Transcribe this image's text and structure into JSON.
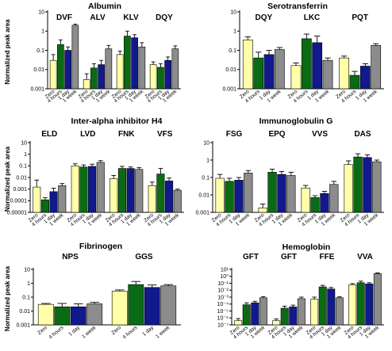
{
  "legend_colors": {
    "Zero": "#ffffa8",
    "4 hours": "#0b6b14",
    "1 day": "#101a8c",
    "1 week": "#8c8c8c"
  },
  "chart_data": [
    {
      "type": "bar",
      "scale": "log",
      "title": "Albumin",
      "ylabel": "Normalized peak area",
      "ylim": [
        0.001,
        10
      ],
      "yticks": [
        0.001,
        0.01,
        0.1,
        1,
        10
      ],
      "ytick_labels": [
        "0.001",
        "0.01",
        "0.1",
        "1",
        "10"
      ],
      "categories": [
        "Zero",
        "4 hours",
        "1 day",
        "1 week"
      ],
      "groups": [
        {
          "label": "DVF",
          "values": [
            0.03,
            0.2,
            0.1,
            2.0
          ],
          "errors": [
            0.06,
            0.35,
            0.15,
            2.3
          ]
        },
        {
          "label": "ALV",
          "values": [
            0.003,
            0.012,
            0.018,
            0.12
          ],
          "errors": [
            0.006,
            0.02,
            0.03,
            0.18
          ]
        },
        {
          "label": "KLV",
          "values": [
            0.06,
            0.55,
            0.45,
            0.15
          ],
          "errors": [
            0.09,
            1.0,
            0.65,
            0.25
          ]
        },
        {
          "label": "DQY",
          "values": [
            0.018,
            0.013,
            0.03,
            0.12
          ],
          "errors": [
            0.025,
            0.02,
            0.045,
            0.17
          ]
        }
      ]
    },
    {
      "type": "bar",
      "scale": "log",
      "title": "Serotransferrin",
      "ylabel": "",
      "ylim": [
        0.001,
        10
      ],
      "yticks": [
        0.001,
        0.01,
        0.1,
        1,
        10
      ],
      "ytick_labels": [
        "0.001",
        "0.01",
        "0.1",
        "1",
        "10"
      ],
      "categories": [
        "Zero",
        "4 hours",
        "1 day",
        "1 week"
      ],
      "groups": [
        {
          "label": "DQY",
          "values": [
            0.35,
            0.04,
            0.06,
            0.11
          ],
          "errors": [
            0.5,
            0.08,
            0.1,
            0.14
          ]
        },
        {
          "label": "LKC",
          "values": [
            0.016,
            0.4,
            0.25,
            0.03
          ],
          "errors": [
            0.022,
            0.7,
            0.55,
            0.04
          ]
        },
        {
          "label": "PQT",
          "values": [
            0.04,
            0.005,
            0.015,
            0.18
          ],
          "errors": [
            0.05,
            0.008,
            0.02,
            0.22
          ]
        }
      ]
    },
    {
      "type": "bar",
      "scale": "log",
      "title": "Inter-alpha inhibitor H4",
      "ylabel": "Normalized peak area",
      "ylim": [
        1e-05,
        10
      ],
      "yticks": [
        1e-05,
        0.0001,
        0.001,
        0.01,
        0.1,
        1,
        10
      ],
      "ytick_labels": [
        "0.00001",
        "0.0001",
        "0.001",
        "0.01",
        "0.1",
        "1",
        "10"
      ],
      "categories": [
        "Zero",
        "4 hours",
        "1 day",
        "1 week"
      ],
      "groups": [
        {
          "label": "ELD",
          "values": [
            0.0015,
            0.00012,
            0.0006,
            0.002
          ],
          "errors": [
            0.006,
            0.00018,
            0.0012,
            0.003
          ]
        },
        {
          "label": "LVD",
          "values": [
            0.1,
            0.08,
            0.09,
            0.2
          ],
          "errors": [
            0.15,
            0.12,
            0.14,
            0.28
          ]
        },
        {
          "label": "FNK",
          "values": [
            0.008,
            0.06,
            0.06,
            0.05
          ],
          "errors": [
            0.015,
            0.09,
            0.08,
            0.07
          ]
        },
        {
          "label": "VFS",
          "values": [
            0.002,
            0.02,
            0.005,
            0.0008
          ],
          "errors": [
            0.004,
            0.06,
            0.009,
            0.001
          ]
        }
      ]
    },
    {
      "type": "bar",
      "scale": "log",
      "title": "Immunoglobulin G",
      "ylabel": "",
      "ylim": [
        0.001,
        10
      ],
      "yticks": [
        0.001,
        0.01,
        0.1,
        1,
        10
      ],
      "ytick_labels": [
        "0.001",
        "0.01",
        "0.1",
        "1",
        "10"
      ],
      "categories": [
        "Zero",
        "4 hours",
        "1 day",
        "1 week"
      ],
      "groups": [
        {
          "label": "FSG",
          "values": [
            0.09,
            0.06,
            0.07,
            0.18
          ],
          "errors": [
            0.15,
            0.09,
            0.1,
            0.25
          ]
        },
        {
          "label": "EPQ",
          "values": [
            0.0018,
            0.2,
            0.15,
            0.13
          ],
          "errors": [
            0.003,
            0.3,
            0.22,
            0.2
          ]
        },
        {
          "label": "VVS",
          "values": [
            0.025,
            0.007,
            0.012,
            0.04
          ],
          "errors": [
            0.035,
            0.009,
            0.016,
            0.06
          ]
        },
        {
          "label": "DAS",
          "values": [
            0.55,
            1.5,
            1.4,
            0.8
          ],
          "errors": [
            0.9,
            2.3,
            2.0,
            1.0
          ]
        }
      ]
    },
    {
      "type": "bar",
      "scale": "log",
      "title": "Fibrinogen",
      "ylabel": "Normalized peak area",
      "ylim": [
        0.001,
        10
      ],
      "yticks": [
        0.001,
        0.01,
        0.1,
        1,
        10
      ],
      "ytick_labels": [
        "0.001",
        "0.01",
        "0.1",
        "1",
        "10"
      ],
      "categories": [
        "Zero",
        "4 hours",
        "1 day",
        "1 week"
      ],
      "x_tick_labels": [
        "Zero",
        "4 hours",
        "1 day",
        "1 week"
      ],
      "groups": [
        {
          "label": "NPS",
          "values": [
            0.03,
            0.02,
            0.02,
            0.033
          ],
          "errors": [
            0.035,
            0.035,
            0.033,
            0.042
          ]
        },
        {
          "label": "GGS",
          "values": [
            0.27,
            0.8,
            0.5,
            0.65
          ],
          "errors": [
            0.33,
            1.35,
            0.75,
            0.8
          ]
        }
      ]
    },
    {
      "type": "bar",
      "scale": "log",
      "title": "Hemoglobin",
      "ylabel": "",
      "ylim": [
        1e-07,
        10
      ],
      "yticks": [
        1e-07,
        1e-06,
        1e-05,
        0.0001,
        0.001,
        0.01,
        0.1,
        1,
        10
      ],
      "ytick_labels": [
        "10⁻⁷",
        "10⁻⁶",
        "10⁻⁵",
        "10⁻⁴",
        "10⁻³",
        "10⁻²",
        "10⁻¹",
        "10⁰",
        "10¹"
      ],
      "categories": [
        "Zero",
        "4 hours",
        "1 day",
        "1 week"
      ],
      "groups": [
        {
          "label": "GFT",
          "values": [
            4e-07,
            8e-05,
            0.00015,
            0.0008
          ],
          "errors": [
            8e-07,
            0.00015,
            0.00025,
            0.0012
          ]
        },
        {
          "label": "GFT",
          "values": [
            4e-07,
            2.5e-05,
            4e-05,
            0.0006
          ],
          "errors": [
            7e-07,
            5e-05,
            7e-05,
            0.001
          ]
        },
        {
          "label": "FFE",
          "values": [
            0.0005,
            0.03,
            0.015,
            0.0008
          ],
          "errors": [
            0.001,
            0.05,
            0.025,
            0.0011
          ]
        },
        {
          "label": "VVA",
          "values": [
            0.06,
            0.12,
            0.08,
            2.5
          ],
          "errors": [
            0.09,
            0.2,
            0.12,
            3.2
          ]
        }
      ]
    }
  ]
}
